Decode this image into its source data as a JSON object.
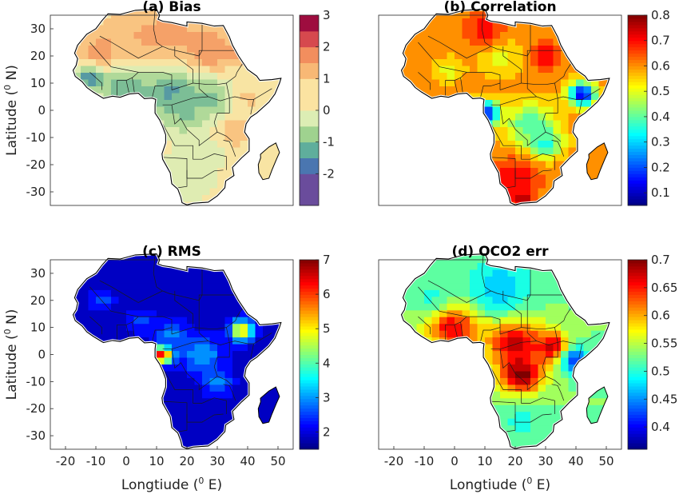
{
  "figure": {
    "xlabel": "Longtiude (",
    "xlabel_sup": "0",
    "xlabel_tail": " E)",
    "ylabel": "Latitude (",
    "ylabel_sup": "0",
    "ylabel_tail": " N)"
  },
  "colors": {
    "land_outline": "#000000",
    "border": "#1a1a1a",
    "bias_scale": [
      "#6a4c9c",
      "#4a76b0",
      "#5fae9c",
      "#9fd28f",
      "#dcedb4",
      "#fbe3a1",
      "#f8b875",
      "#f28e5e",
      "#d6494e",
      "#9e0d3f"
    ],
    "jet_scale": [
      "#00007f",
      "#0000ff",
      "#007fff",
      "#00ffff",
      "#7fff7f",
      "#ffff00",
      "#ff7f00",
      "#ff0000",
      "#7f0000"
    ]
  },
  "chart_data": [
    {
      "id": "a",
      "type": "heatmap",
      "title": "(a) Bias",
      "colormap": "diverging",
      "clim": [
        -3,
        3
      ],
      "colorbar_ticks": [
        "3",
        "2",
        "1",
        "0",
        "-1",
        "-2"
      ],
      "colorbar_values": [
        3,
        2,
        1,
        0,
        -1,
        -2
      ],
      "xlim": [
        -25,
        55
      ],
      "ylim": [
        -35,
        35
      ],
      "xticks": [],
      "yticks": [
        "30",
        "20",
        "10",
        "0",
        "-10",
        "-20",
        "-30"
      ],
      "ytick_values": [
        30,
        20,
        10,
        0,
        -10,
        -20,
        -30
      ],
      "background_value": 0.2,
      "blobs": [
        {
          "lon": -7,
          "lat": 20,
          "r": 8,
          "v": 2.0
        },
        {
          "lon": 27,
          "lat": 22,
          "r": 8,
          "v": 1.9
        },
        {
          "lon": 5,
          "lat": 25,
          "r": 16,
          "v": 1.1
        },
        {
          "lon": 15,
          "lat": 28,
          "r": 10,
          "v": 1.3
        },
        {
          "lon": 35,
          "lat": 22,
          "r": 6,
          "v": 1.2
        },
        {
          "lon": 0,
          "lat": 8,
          "r": 10,
          "v": -1.6
        },
        {
          "lon": 15,
          "lat": 6,
          "r": 10,
          "v": -1.8
        },
        {
          "lon": 28,
          "lat": 4,
          "r": 8,
          "v": -1.4
        },
        {
          "lon": 20,
          "lat": -2,
          "r": 7,
          "v": -1.2
        },
        {
          "lon": -12,
          "lat": 12,
          "r": 5,
          "v": -2.2
        },
        {
          "lon": 35,
          "lat": -8,
          "r": 7,
          "v": 0.9
        },
        {
          "lon": 40,
          "lat": 5,
          "r": 5,
          "v": 0.7
        },
        {
          "lon": 20,
          "lat": -25,
          "r": 9,
          "v": -0.5
        },
        {
          "lon": 25,
          "lat": -15,
          "r": 8,
          "v": -0.4
        }
      ]
    },
    {
      "id": "b",
      "type": "heatmap",
      "title": "(b) Correlation",
      "colormap": "jet",
      "clim": [
        0.05,
        0.8
      ],
      "colorbar_ticks": [
        "0.8",
        "0.7",
        "0.6",
        "0.5",
        "0.4",
        "0.3",
        "0.2",
        "0.1"
      ],
      "colorbar_values": [
        0.8,
        0.7,
        0.6,
        0.5,
        0.4,
        0.3,
        0.2,
        0.1
      ],
      "xlim": [
        -25,
        55
      ],
      "ylim": [
        -35,
        35
      ],
      "xticks": [],
      "yticks": [],
      "background_value": 0.6,
      "blobs": [
        {
          "lon": 10,
          "lat": -1,
          "r": 5,
          "v": 0.1
        },
        {
          "lon": 42,
          "lat": 6,
          "r": 5,
          "v": 0.15
        },
        {
          "lon": 25,
          "lat": -5,
          "r": 9,
          "v": 0.38
        },
        {
          "lon": 30,
          "lat": -12,
          "r": 6,
          "v": 0.35
        },
        {
          "lon": 15,
          "lat": 20,
          "r": 8,
          "v": 0.5
        },
        {
          "lon": -2,
          "lat": 15,
          "r": 5,
          "v": 0.5
        },
        {
          "lon": 20,
          "lat": -25,
          "r": 8,
          "v": 0.72
        },
        {
          "lon": 10,
          "lat": 30,
          "r": 7,
          "v": 0.7
        },
        {
          "lon": 30,
          "lat": 20,
          "r": 5,
          "v": 0.72
        },
        {
          "lon": 22,
          "lat": -32,
          "r": 4,
          "v": 0.75
        }
      ]
    },
    {
      "id": "c",
      "type": "heatmap",
      "title": "(c) RMS",
      "colormap": "jet",
      "clim": [
        1.5,
        7
      ],
      "colorbar_ticks": [
        "7",
        "6",
        "5",
        "4",
        "3",
        "2"
      ],
      "colorbar_values": [
        7,
        6,
        5,
        4,
        3,
        2
      ],
      "xlim": [
        -25,
        55
      ],
      "ylim": [
        -35,
        35
      ],
      "xticks": [
        "-20",
        "-10",
        "0",
        "10",
        "20",
        "30",
        "40",
        "50"
      ],
      "xtick_values": [
        -20,
        -10,
        0,
        10,
        20,
        30,
        40,
        50
      ],
      "yticks": [
        "30",
        "20",
        "10",
        "0",
        "-10",
        "-20",
        "-30"
      ],
      "ytick_values": [
        30,
        20,
        10,
        0,
        -10,
        -20,
        -30
      ],
      "background_value": 1.9,
      "blobs": [
        {
          "lon": 12,
          "lat": 0,
          "r": 3.5,
          "v": 6.8
        },
        {
          "lon": 38,
          "lat": 9,
          "r": 4,
          "v": 5.3
        },
        {
          "lon": 25,
          "lat": 0,
          "r": 7,
          "v": 3.2
        },
        {
          "lon": 15,
          "lat": 8,
          "r": 5,
          "v": 3.0
        },
        {
          "lon": 30,
          "lat": -10,
          "r": 5,
          "v": 2.9
        },
        {
          "lon": -8,
          "lat": 20,
          "r": 4,
          "v": 2.6
        },
        {
          "lon": 5,
          "lat": 12,
          "r": 5,
          "v": 2.5
        }
      ]
    },
    {
      "id": "d",
      "type": "heatmap",
      "title": "(d) OCO2 err",
      "colormap": "jet",
      "clim": [
        0.36,
        0.7
      ],
      "colorbar_ticks": [
        "0.7",
        "0.65",
        "0.6",
        "0.55",
        "0.5",
        "0.45",
        "0.4"
      ],
      "colorbar_values": [
        0.7,
        0.65,
        0.6,
        0.55,
        0.5,
        0.45,
        0.4
      ],
      "xlim": [
        -25,
        55
      ],
      "ylim": [
        -35,
        35
      ],
      "xticks": [
        "-20",
        "-10",
        "0",
        "10",
        "20",
        "30",
        "40",
        "50"
      ],
      "xtick_values": [
        -20,
        -10,
        0,
        10,
        20,
        30,
        40,
        50
      ],
      "yticks": [],
      "background_value": 0.53,
      "blobs": [
        {
          "lon": 0,
          "lat": 10,
          "r": 10,
          "v": 0.67
        },
        {
          "lon": 20,
          "lat": 5,
          "r": 10,
          "v": 0.68
        },
        {
          "lon": 22,
          "lat": -7,
          "r": 8,
          "v": 0.7
        },
        {
          "lon": 32,
          "lat": 3,
          "r": 6,
          "v": 0.68
        },
        {
          "lon": 15,
          "lat": 25,
          "r": 12,
          "v": 0.47
        },
        {
          "lon": 40,
          "lat": -2,
          "r": 5,
          "v": 0.42
        },
        {
          "lon": 22,
          "lat": -25,
          "r": 8,
          "v": 0.5
        },
        {
          "lon": -8,
          "lat": 22,
          "r": 7,
          "v": 0.5
        }
      ]
    }
  ]
}
